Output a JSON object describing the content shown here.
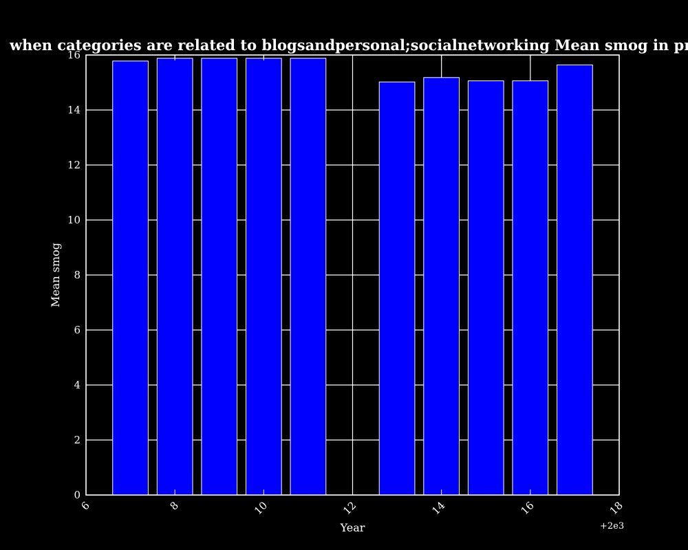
{
  "chart_data": {
    "type": "bar",
    "title": "when categories are related to blogsandpersonal;socialnetworking Mean smog in privacy policies by Year",
    "xlabel": "Year",
    "ylabel": "Mean smog",
    "x_offset_label": "+2e3",
    "x": [
      7,
      8,
      9,
      10,
      11,
      13,
      14,
      15,
      16,
      17
    ],
    "values": [
      15.78,
      15.88,
      15.88,
      15.88,
      15.88,
      15.02,
      15.18,
      15.06,
      15.06,
      15.64
    ],
    "xlim": [
      6,
      18
    ],
    "ylim": [
      0,
      16
    ],
    "xticks": [
      6,
      8,
      10,
      12,
      14,
      16,
      18
    ],
    "yticks": [
      0,
      2,
      4,
      6,
      8,
      10,
      12,
      14,
      16
    ],
    "grid": true,
    "colors": {
      "background": "#000000",
      "bar_fill": "#0000ff",
      "bar_edge": "#ffffff",
      "grid": "#ffffff",
      "axes": "#ffffff",
      "text": "#ffffff"
    }
  }
}
